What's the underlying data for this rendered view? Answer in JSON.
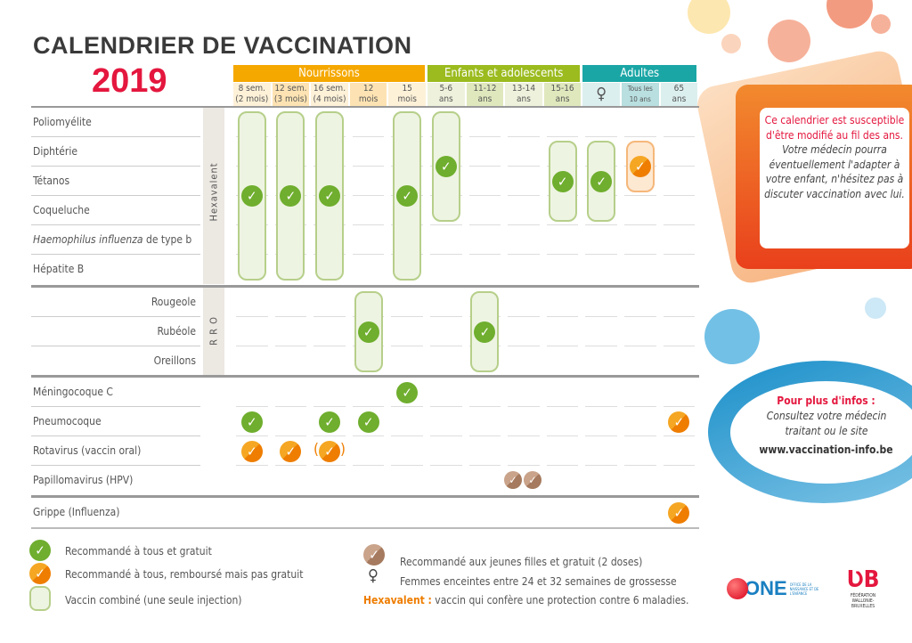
{
  "title": "CALENDRIER DE VACCINATION",
  "year": "2019",
  "groups": [
    {
      "label": "Nourrissons",
      "color": "#f5a800"
    },
    {
      "label": "Enfants et adolescents",
      "color": "#9bbb1e"
    },
    {
      "label": "Adultes",
      "color": "#1ba6a6"
    }
  ],
  "columns": [
    {
      "l1": "8 sem.",
      "l2": "(2 mois)",
      "bg": "#fdf1d8"
    },
    {
      "l1": "12 sem.",
      "l2": "(3 mois)",
      "bg": "#fde3b3"
    },
    {
      "l1": "16 sem.",
      "l2": "(4 mois)",
      "bg": "#fdf1d8"
    },
    {
      "l1": "12",
      "l2": "mois",
      "bg": "#fde3b3"
    },
    {
      "l1": "15",
      "l2": "mois",
      "bg": "#fdf1d8"
    },
    {
      "l1": "5-6",
      "l2": "ans",
      "bg": "#eef2dc"
    },
    {
      "l1": "11-12",
      "l2": "ans",
      "bg": "#dfe8bd"
    },
    {
      "l1": "13-14",
      "l2": "ans",
      "bg": "#eef2dc"
    },
    {
      "l1": "15-16",
      "l2": "ans",
      "bg": "#dfe8bd"
    },
    {
      "l1": "♀",
      "l2": "",
      "bg": "#dcefef"
    },
    {
      "l1": "Tous les",
      "l2": "10 ans",
      "bg": "#b9dfe0"
    },
    {
      "l1": "65",
      "l2": "ans",
      "bg": "#dcefef"
    }
  ],
  "rows": [
    {
      "label": "Poliomyélite",
      "align": "left"
    },
    {
      "label": "Diphtérie",
      "align": "left"
    },
    {
      "label": "Tétanos",
      "align": "left"
    },
    {
      "label": "Coqueluche",
      "align": "left"
    },
    {
      "label_italic": "Haemophilus influenza",
      "label": " de type b",
      "align": "left"
    },
    {
      "label": "Hépatite B",
      "align": "left"
    },
    {
      "label": "Rougeole",
      "align": "right"
    },
    {
      "label": "Rubéole",
      "align": "right"
    },
    {
      "label": "Oreillons",
      "align": "right"
    },
    {
      "label": "Méningocoque C",
      "align": "left"
    },
    {
      "label": "Pneumocoque",
      "align": "left"
    },
    {
      "label": "Rotavirus (vaccin oral)",
      "align": "left"
    },
    {
      "label": "Papillomavirus (HPV)",
      "align": "left"
    },
    {
      "label": "Grippe (Influenza)",
      "align": "left"
    }
  ],
  "side_labels": {
    "hexavalent": "Hexavalent",
    "rro": "R R O"
  },
  "combined": [
    {
      "col": 0,
      "from": 0,
      "to": 5,
      "type": "g"
    },
    {
      "col": 1,
      "from": 0,
      "to": 5,
      "type": "g"
    },
    {
      "col": 2,
      "from": 0,
      "to": 5,
      "type": "g"
    },
    {
      "col": 4,
      "from": 0,
      "to": 5,
      "type": "g"
    },
    {
      "col": 5,
      "from": 0,
      "to": 3,
      "type": "g"
    },
    {
      "col": 8,
      "from": 1,
      "to": 3,
      "type": "g"
    },
    {
      "col": 9,
      "from": 1,
      "to": 3,
      "type": "g"
    },
    {
      "col": 10,
      "from": 1,
      "to": 2,
      "type": "o"
    },
    {
      "col": 3,
      "from": 6,
      "to": 8,
      "type": "g"
    },
    {
      "col": 6,
      "from": 6,
      "to": 8,
      "type": "g"
    }
  ],
  "singles": [
    {
      "col": 4,
      "row": 9,
      "type": "g"
    },
    {
      "col": 0,
      "row": 10,
      "type": "g"
    },
    {
      "col": 2,
      "row": 10,
      "type": "g"
    },
    {
      "col": 3,
      "row": 10,
      "type": "g"
    },
    {
      "col": 11,
      "row": 10,
      "type": "o"
    },
    {
      "col": 0,
      "row": 11,
      "type": "o"
    },
    {
      "col": 1,
      "row": 11,
      "type": "o"
    },
    {
      "col": 2,
      "row": 11,
      "type": "o",
      "paren": true
    },
    {
      "col": 7,
      "row": 12,
      "type": "b",
      "double": true
    },
    {
      "col": 11,
      "row": 13,
      "type": "o"
    }
  ],
  "info_box": {
    "highlight": "Ce calendrier est susceptible d'être modifié au fil des ans.",
    "text": "Votre médecin pourra éventuellement l'adapter à votre enfant, n'hésitez pas à discuter vaccination avec lui."
  },
  "more_info": {
    "title": "Pour plus d'infos :",
    "text": "Consultez votre médecin traitant ou le site",
    "url": "www.vaccination-info.be"
  },
  "legend": {
    "green": "Recommandé à tous et gratuit",
    "orange": "Recommandé à tous, remboursé mais pas gratuit",
    "combined": "Vaccin combiné (une seule injection)",
    "brown": "Recommandé aux jeunes filles et gratuit (2 doses)",
    "female": "Femmes enceintes entre 24 et 32 semaines de grossesse",
    "hexa_term": "Hexavalent :",
    "hexa_def": " vaccin qui confère une protection contre 6 maladies."
  },
  "logos": {
    "one": "ONE",
    "one_sub": "OFFICE DE LA NAISSANCE ET DE L'ENFANCE",
    "fwb": "FÉDÉRATION WALLONIE-BRUXELLES"
  }
}
